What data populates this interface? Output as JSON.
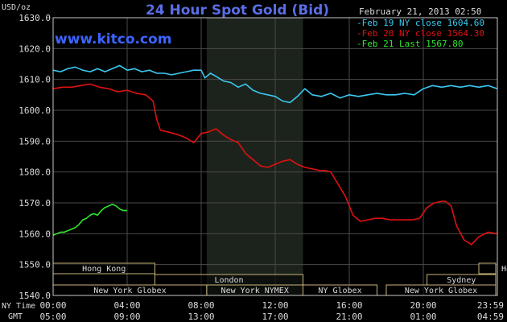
{
  "chart_data": {
    "type": "line",
    "title": "24 Hour Spot Gold (Bid)",
    "watermark": "www.kitco.com",
    "date_label": "February 21, 2013 02:50",
    "ylabel": "USD/oz",
    "ylim": [
      1540,
      1630
    ],
    "y_ticks": [
      "1630.0",
      "1620.0",
      "1610.0",
      "1600.0",
      "1590.0",
      "1580.0",
      "1570.0",
      "1560.0",
      "1550.0",
      "1540.0"
    ],
    "xlim": [
      0,
      24
    ],
    "x_ticks_ny": [
      "00:00",
      "04:00",
      "08:00",
      "12:00",
      "16:00",
      "20:00",
      "23:59"
    ],
    "x_ticks_gmt": [
      "05:00",
      "09:00",
      "13:00",
      "17:00",
      "21:00",
      "01:00",
      "04:59"
    ],
    "x_axis_labels": {
      "ny": "NY Time",
      "gmt": "GMT"
    },
    "grid": true,
    "legend_position": "top-right",
    "highlight_band_hours": [
      8.3,
      13.5
    ],
    "colors": {
      "feb19": "#3ac8f0",
      "feb20": "#e01010",
      "feb21": "#2ee82e",
      "grid": "#4a4a4a",
      "frame": "#c8c8c8",
      "title": "#5a6ee6",
      "watermark": "#3c64ff",
      "sessions": "#c8b478"
    },
    "series": [
      {
        "name": "Feb 19 NY close 1604.60",
        "key": "feb19",
        "x": [
          0,
          0.4,
          0.8,
          1.2,
          1.6,
          2.0,
          2.4,
          2.8,
          3.2,
          3.6,
          4.0,
          4.4,
          4.8,
          5.2,
          5.6,
          6.0,
          6.4,
          6.8,
          7.2,
          7.6,
          8.0,
          8.2,
          8.5,
          8.8,
          9.2,
          9.6,
          10.0,
          10.4,
          10.8,
          11.2,
          11.6,
          12.0,
          12.4,
          12.8,
          13.2,
          13.6,
          14.0,
          14.5,
          15.0,
          15.5,
          16.0,
          16.5,
          17.0,
          17.5,
          18.0,
          18.5,
          19.0,
          19.5,
          20.0,
          20.5,
          21.0,
          21.5,
          22.0,
          22.5,
          23.0,
          23.5,
          24.0
        ],
        "values": [
          1613.0,
          1612.5,
          1613.5,
          1614.0,
          1613.0,
          1612.5,
          1613.5,
          1612.5,
          1613.5,
          1614.5,
          1613.0,
          1613.5,
          1612.5,
          1613.0,
          1612.0,
          1612.0,
          1611.5,
          1612.0,
          1612.5,
          1613.0,
          1613.0,
          1610.5,
          1612.0,
          1611.0,
          1609.5,
          1609.0,
          1607.5,
          1608.5,
          1606.5,
          1605.5,
          1605.0,
          1604.5,
          1603.0,
          1602.5,
          1604.5,
          1607.0,
          1605.0,
          1604.5,
          1605.5,
          1604.0,
          1605.0,
          1604.5,
          1605.0,
          1605.5,
          1605.0,
          1605.0,
          1605.5,
          1605.0,
          1607.0,
          1608.0,
          1607.5,
          1608.0,
          1607.5,
          1608.0,
          1607.5,
          1608.0,
          1607.0
        ]
      },
      {
        "name": "Feb 20 NY close 1564.30",
        "key": "feb20",
        "x": [
          0,
          0.5,
          1.0,
          1.5,
          2.0,
          2.5,
          3.0,
          3.5,
          4.0,
          4.5,
          5.0,
          5.4,
          5.6,
          5.8,
          6.2,
          6.8,
          7.2,
          7.6,
          8.0,
          8.4,
          8.8,
          9.2,
          9.6,
          10.0,
          10.4,
          10.8,
          11.2,
          11.6,
          12.0,
          12.4,
          12.8,
          13.2,
          13.6,
          14.0,
          14.4,
          14.7,
          15.0,
          15.4,
          15.8,
          16.2,
          16.6,
          17.0,
          17.4,
          17.8,
          18.2,
          18.6,
          19.0,
          19.4,
          19.8,
          20.2,
          20.6,
          21.0,
          21.2,
          21.5,
          21.8,
          22.2,
          22.6,
          23.0,
          23.5,
          24.0
        ],
        "values": [
          1607.0,
          1607.5,
          1607.5,
          1608.0,
          1608.5,
          1607.5,
          1607.0,
          1606.0,
          1606.5,
          1605.5,
          1605.0,
          1603.0,
          1597.0,
          1593.5,
          1593.0,
          1592.0,
          1591.0,
          1589.5,
          1592.5,
          1593.0,
          1594.0,
          1592.0,
          1590.5,
          1589.5,
          1586.0,
          1584.0,
          1582.0,
          1581.5,
          1582.5,
          1583.5,
          1584.0,
          1582.5,
          1581.5,
          1581.0,
          1580.5,
          1580.5,
          1580.0,
          1576.0,
          1572.0,
          1566.0,
          1564.0,
          1564.5,
          1565.0,
          1565.0,
          1564.5,
          1564.5,
          1564.5,
          1564.5,
          1565.0,
          1568.5,
          1570.0,
          1570.5,
          1570.5,
          1569.0,
          1562.5,
          1558.0,
          1556.5,
          1559.0,
          1560.5,
          1560.0
        ]
      },
      {
        "name": "Feb 21 Last 1567.80",
        "key": "feb21",
        "x": [
          0,
          0.2,
          0.4,
          0.6,
          0.8,
          1.0,
          1.2,
          1.4,
          1.6,
          1.8,
          2.0,
          2.2,
          2.4,
          2.6,
          2.8,
          3.0,
          3.2,
          3.4,
          3.6,
          3.8,
          4.0
        ],
        "values": [
          1559.5,
          1560.0,
          1560.5,
          1560.5,
          1561.0,
          1561.5,
          1562.0,
          1563.0,
          1564.5,
          1565.0,
          1566.0,
          1566.5,
          1566.0,
          1567.5,
          1568.5,
          1569.0,
          1569.5,
          1569.0,
          1568.0,
          1567.5,
          1567.5
        ]
      }
    ],
    "sessions": [
      {
        "label": "Hong Kong",
        "start": 0,
        "end": 5.5,
        "row": 0
      },
      {
        "label": "Hong Kong",
        "start": 23.0,
        "end": 28.0,
        "row": 0,
        "clip_label": true
      },
      {
        "label": "London",
        "start": 5.5,
        "end": 13.5,
        "row": 1
      },
      {
        "label": "Sydney",
        "start": 20.2,
        "end": 24.6,
        "row": 1
      },
      {
        "label": "New York Globex",
        "start": 0,
        "end": 8.3,
        "row": 2
      },
      {
        "label": "New York NYMEX",
        "start": 8.3,
        "end": 13.5,
        "row": 2
      },
      {
        "label": "NY Globex",
        "start": 13.5,
        "end": 17.5,
        "row": 2
      },
      {
        "label": "New York Globex",
        "start": 18.0,
        "end": 24.0,
        "row": 2
      }
    ]
  }
}
